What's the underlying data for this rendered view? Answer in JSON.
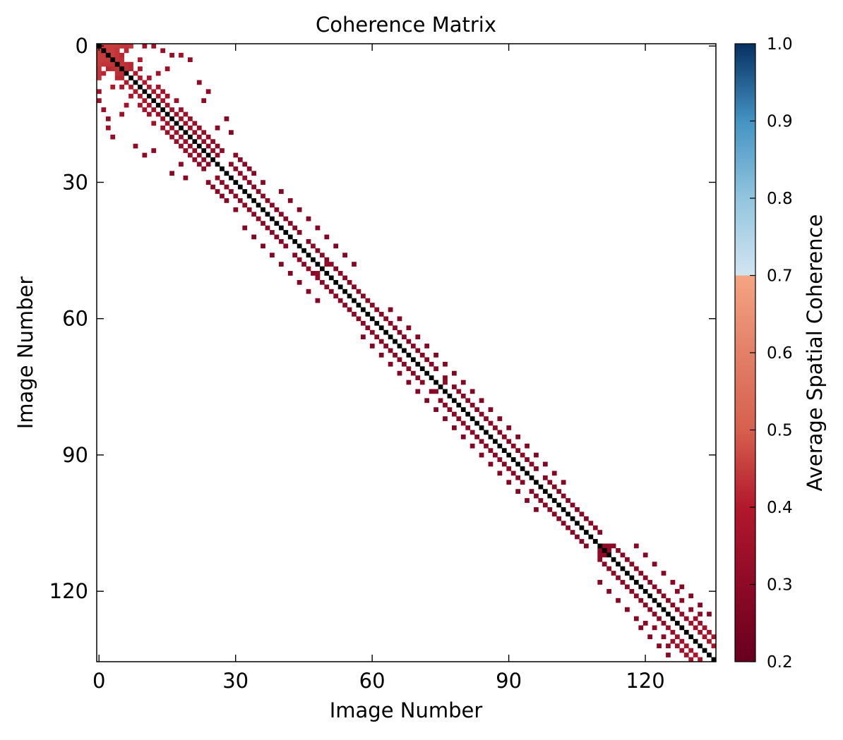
{
  "chart_data": {
    "type": "heatmap",
    "title": "Coherence Matrix",
    "xlabel": "Image Number",
    "ylabel": "Image Number",
    "size": 136,
    "xlim": [
      0,
      136
    ],
    "ylim": [
      0,
      136
    ],
    "x_ticks": [
      0,
      30,
      60,
      90,
      120
    ],
    "y_ticks": [
      0,
      30,
      60,
      90,
      120
    ],
    "x_tick_labels": [
      "0",
      "30",
      "60",
      "90",
      "120"
    ],
    "y_tick_labels": [
      "0",
      "30",
      "60",
      "90",
      "120"
    ],
    "diagonal_value": 1.0,
    "symmetric": true,
    "colorbar": {
      "label": "Average Spatial Coherence",
      "vmin": 0.2,
      "vmax": 1.0,
      "ticks": [
        0.2,
        0.3,
        0.4,
        0.5,
        0.6,
        0.7,
        0.8,
        0.9,
        1.0
      ],
      "tick_labels": [
        "0.2",
        "0.3",
        "0.4",
        "0.5",
        "0.6",
        "0.7",
        "0.8",
        "0.9",
        "1.0"
      ],
      "colormap": "RdBu_r",
      "cmap_stops": [
        [
          0.2,
          "#67001f"
        ],
        [
          0.3,
          "#8e0a26"
        ],
        [
          0.4,
          "#b2182b"
        ],
        [
          0.5,
          "#d6604d"
        ],
        [
          0.6,
          "#e28068"
        ],
        [
          0.7,
          "#f4a582"
        ],
        [
          0.7001,
          "#d1e5f0"
        ],
        [
          0.8,
          "#92c5de"
        ],
        [
          0.9,
          "#4393c3"
        ],
        [
          1.0,
          "#053061"
        ]
      ]
    },
    "cells": [
      [
        0,
        1,
        0.45
      ],
      [
        0,
        2,
        0.45
      ],
      [
        0,
        3,
        0.45
      ],
      [
        0,
        4,
        0.45
      ],
      [
        0,
        5,
        0.44
      ],
      [
        0,
        6,
        0.44
      ],
      [
        0,
        7,
        0.44
      ],
      [
        1,
        2,
        0.45
      ],
      [
        1,
        3,
        0.45
      ],
      [
        1,
        4,
        0.44
      ],
      [
        1,
        6,
        0.42
      ],
      [
        2,
        3,
        0.45
      ],
      [
        2,
        4,
        0.44
      ],
      [
        2,
        5,
        0.42
      ],
      [
        3,
        4,
        0.44
      ],
      [
        3,
        5,
        0.43
      ],
      [
        3,
        9,
        0.4
      ],
      [
        4,
        5,
        0.44
      ],
      [
        4,
        6,
        0.43
      ],
      [
        5,
        6,
        0.43
      ],
      [
        5,
        7,
        0.42
      ],
      [
        0,
        10,
        0.35
      ],
      [
        0,
        12,
        0.34
      ],
      [
        1,
        14,
        0.33
      ],
      [
        2,
        16,
        0.32
      ],
      [
        2,
        18,
        0.35
      ],
      [
        3,
        20,
        0.32
      ],
      [
        4,
        7,
        0.42
      ],
      [
        5,
        9,
        0.38
      ],
      [
        5,
        15,
        0.34
      ],
      [
        6,
        8,
        0.4
      ],
      [
        6,
        13,
        0.36
      ],
      [
        7,
        9,
        0.4
      ],
      [
        7,
        11,
        0.38
      ],
      [
        8,
        10,
        0.4
      ],
      [
        9,
        11,
        0.39
      ],
      [
        9,
        13,
        0.37
      ],
      [
        10,
        12,
        0.38
      ],
      [
        10,
        14,
        0.36
      ],
      [
        11,
        13,
        0.37
      ],
      [
        11,
        15,
        0.35
      ],
      [
        12,
        14,
        0.36
      ],
      [
        12,
        17,
        0.34
      ],
      [
        13,
        15,
        0.35
      ],
      [
        14,
        16,
        0.35
      ],
      [
        14,
        18,
        0.34
      ],
      [
        15,
        17,
        0.35
      ],
      [
        15,
        19,
        0.34
      ],
      [
        16,
        18,
        0.34
      ],
      [
        16,
        20,
        0.33
      ],
      [
        17,
        19,
        0.34
      ],
      [
        17,
        21,
        0.33
      ],
      [
        18,
        20,
        0.33
      ],
      [
        18,
        22,
        0.32
      ],
      [
        19,
        21,
        0.33
      ],
      [
        19,
        23,
        0.32
      ],
      [
        20,
        22,
        0.32
      ],
      [
        20,
        24,
        0.31
      ],
      [
        21,
        23,
        0.32
      ],
      [
        21,
        25,
        0.31
      ],
      [
        22,
        24,
        0.31
      ],
      [
        22,
        26,
        0.3
      ],
      [
        23,
        25,
        0.31
      ],
      [
        23,
        27,
        0.3
      ],
      [
        24,
        26,
        0.3
      ],
      [
        8,
        22,
        0.3
      ],
      [
        10,
        24,
        0.3
      ],
      [
        12,
        23,
        0.3
      ],
      [
        16,
        28,
        0.28
      ],
      [
        18,
        26,
        0.3
      ],
      [
        19,
        29,
        0.28
      ],
      [
        24,
        30,
        0.29
      ],
      [
        25,
        31,
        0.29
      ],
      [
        26,
        32,
        0.28
      ],
      [
        27,
        33,
        0.28
      ],
      [
        28,
        34,
        0.28
      ],
      [
        26,
        29,
        0.3
      ],
      [
        27,
        30,
        0.3
      ],
      [
        28,
        31,
        0.3
      ],
      [
        29,
        32,
        0.3
      ],
      [
        30,
        33,
        0.29
      ],
      [
        31,
        34,
        0.29
      ],
      [
        32,
        35,
        0.29
      ],
      [
        33,
        36,
        0.29
      ],
      [
        34,
        37,
        0.29
      ],
      [
        35,
        38,
        0.29
      ],
      [
        36,
        39,
        0.28
      ],
      [
        30,
        36,
        0.28
      ],
      [
        32,
        40,
        0.27
      ],
      [
        34,
        42,
        0.27
      ],
      [
        36,
        44,
        0.27
      ],
      [
        38,
        46,
        0.27
      ],
      [
        40,
        48,
        0.27
      ],
      [
        42,
        50,
        0.27
      ],
      [
        44,
        52,
        0.27
      ],
      [
        46,
        54,
        0.27
      ],
      [
        48,
        56,
        0.27
      ],
      [
        37,
        40,
        0.28
      ],
      [
        38,
        41,
        0.28
      ],
      [
        39,
        42,
        0.28
      ],
      [
        40,
        43,
        0.28
      ],
      [
        41,
        44,
        0.28
      ],
      [
        43,
        46,
        0.28
      ],
      [
        45,
        48,
        0.28
      ],
      [
        47,
        50,
        0.28
      ],
      [
        49,
        52,
        0.28
      ],
      [
        51,
        54,
        0.28
      ],
      [
        44,
        47,
        0.3
      ],
      [
        46,
        49,
        0.3
      ],
      [
        48,
        50,
        0.31
      ],
      [
        48,
        51,
        0.3
      ],
      [
        50,
        53,
        0.29
      ],
      [
        52,
        55,
        0.29
      ],
      [
        54,
        57,
        0.29
      ],
      [
        56,
        59,
        0.29
      ],
      [
        58,
        61,
        0.29
      ],
      [
        60,
        63,
        0.29
      ],
      [
        53,
        56,
        0.28
      ],
      [
        55,
        58,
        0.28
      ],
      [
        57,
        60,
        0.28
      ],
      [
        59,
        62,
        0.28
      ],
      [
        61,
        64,
        0.29
      ],
      [
        62,
        65,
        0.28
      ],
      [
        63,
        66,
        0.28
      ],
      [
        64,
        67,
        0.28
      ],
      [
        65,
        68,
        0.28
      ],
      [
        66,
        69,
        0.28
      ],
      [
        58,
        64,
        0.27
      ],
      [
        60,
        66,
        0.27
      ],
      [
        62,
        68,
        0.27
      ],
      [
        64,
        70,
        0.27
      ],
      [
        66,
        72,
        0.27
      ],
      [
        68,
        74,
        0.27
      ],
      [
        70,
        76,
        0.27
      ],
      [
        72,
        78,
        0.27
      ],
      [
        74,
        80,
        0.27
      ],
      [
        76,
        82,
        0.27
      ],
      [
        67,
        70,
        0.28
      ],
      [
        68,
        71,
        0.28
      ],
      [
        69,
        72,
        0.28
      ],
      [
        70,
        73,
        0.28
      ],
      [
        71,
        74,
        0.28
      ],
      [
        73,
        76,
        0.28
      ],
      [
        75,
        78,
        0.28
      ],
      [
        77,
        80,
        0.28
      ],
      [
        79,
        82,
        0.28
      ],
      [
        81,
        84,
        0.28
      ],
      [
        74,
        76,
        0.3
      ],
      [
        76,
        79,
        0.29
      ],
      [
        78,
        81,
        0.29
      ],
      [
        80,
        83,
        0.29
      ],
      [
        82,
        85,
        0.29
      ],
      [
        84,
        87,
        0.29
      ],
      [
        86,
        89,
        0.29
      ],
      [
        88,
        91,
        0.29
      ],
      [
        90,
        93,
        0.29
      ],
      [
        92,
        95,
        0.29
      ],
      [
        78,
        84,
        0.27
      ],
      [
        80,
        86,
        0.27
      ],
      [
        82,
        88,
        0.27
      ],
      [
        84,
        90,
        0.27
      ],
      [
        86,
        92,
        0.27
      ],
      [
        88,
        94,
        0.27
      ],
      [
        90,
        96,
        0.27
      ],
      [
        92,
        98,
        0.27
      ],
      [
        94,
        100,
        0.27
      ],
      [
        96,
        102,
        0.27
      ],
      [
        83,
        86,
        0.28
      ],
      [
        85,
        88,
        0.28
      ],
      [
        87,
        90,
        0.28
      ],
      [
        89,
        92,
        0.28
      ],
      [
        91,
        94,
        0.28
      ],
      [
        93,
        96,
        0.28
      ],
      [
        95,
        98,
        0.28
      ],
      [
        97,
        100,
        0.28
      ],
      [
        99,
        102,
        0.28
      ],
      [
        101,
        104,
        0.28
      ],
      [
        96,
        99,
        0.28
      ],
      [
        98,
        101,
        0.28
      ],
      [
        100,
        103,
        0.28
      ],
      [
        102,
        105,
        0.28
      ],
      [
        103,
        106,
        0.28
      ],
      [
        104,
        107,
        0.28
      ],
      [
        105,
        108,
        0.28
      ],
      [
        106,
        109,
        0.28
      ],
      [
        107,
        110,
        0.28
      ],
      [
        110,
        111,
        0.3
      ],
      [
        110,
        112,
        0.3
      ],
      [
        110,
        113,
        0.29
      ],
      [
        111,
        112,
        0.3
      ],
      [
        111,
        114,
        0.29
      ],
      [
        112,
        115,
        0.29
      ],
      [
        113,
        116,
        0.29
      ],
      [
        114,
        117,
        0.29
      ],
      [
        115,
        118,
        0.29
      ],
      [
        116,
        119,
        0.29
      ],
      [
        117,
        120,
        0.29
      ],
      [
        118,
        121,
        0.29
      ],
      [
        119,
        122,
        0.29
      ],
      [
        120,
        123,
        0.29
      ],
      [
        121,
        124,
        0.29
      ],
      [
        122,
        125,
        0.29
      ],
      [
        123,
        126,
        0.29
      ],
      [
        124,
        127,
        0.3
      ],
      [
        125,
        128,
        0.32
      ],
      [
        126,
        129,
        0.33
      ],
      [
        127,
        130,
        0.34
      ],
      [
        128,
        131,
        0.35
      ],
      [
        129,
        132,
        0.36
      ],
      [
        130,
        133,
        0.37
      ],
      [
        131,
        134,
        0.38
      ],
      [
        132,
        135,
        0.38
      ],
      [
        126,
        131,
        0.33
      ],
      [
        127,
        132,
        0.34
      ],
      [
        128,
        133,
        0.35
      ],
      [
        129,
        134,
        0.36
      ],
      [
        130,
        135,
        0.37
      ],
      [
        124,
        130,
        0.3
      ],
      [
        125,
        132,
        0.31
      ],
      [
        122,
        128,
        0.29
      ],
      [
        120,
        127,
        0.29
      ],
      [
        110,
        118,
        0.28
      ],
      [
        112,
        120,
        0.28
      ],
      [
        114,
        122,
        0.28
      ],
      [
        116,
        124,
        0.28
      ],
      [
        118,
        126,
        0.28
      ],
      [
        119,
        128,
        0.28
      ],
      [
        121,
        130,
        0.28
      ],
      [
        123,
        132,
        0.28
      ],
      [
        125,
        134,
        0.28
      ]
    ]
  }
}
